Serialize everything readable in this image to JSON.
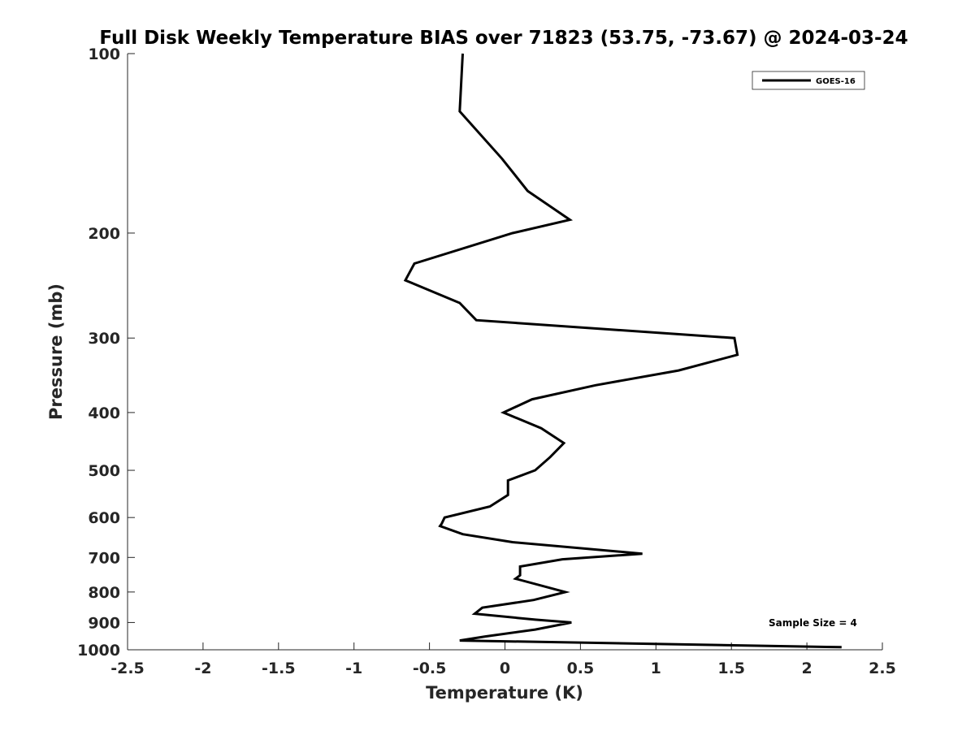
{
  "chart_data": {
    "type": "line",
    "title": "Full Disk Weekly Temperature BIAS over 71823 (53.75, -73.67) @ 2024-03-24",
    "xlabel": "Temperature (K)",
    "ylabel": "Pressure (mb)",
    "xlim": [
      -2.5,
      2.5
    ],
    "ylim": [
      1000,
      100
    ],
    "yscale": "log",
    "grid": false,
    "legend_position": "top-right",
    "x_ticks": [
      "-2.5",
      "-2",
      "-1.5",
      "-1",
      "-0.5",
      "0",
      "0.5",
      "1",
      "1.5",
      "2",
      "2.5"
    ],
    "y_ticks": [
      "100",
      "200",
      "300",
      "400",
      "500",
      "600",
      "700",
      "800",
      "900",
      "1000"
    ],
    "series": [
      {
        "name": "GOES-16",
        "color": "#000000",
        "points": [
          {
            "x": -0.28,
            "y": 100
          },
          {
            "x": -0.3,
            "y": 125
          },
          {
            "x": -0.02,
            "y": 150
          },
          {
            "x": 0.15,
            "y": 170
          },
          {
            "x": 0.43,
            "y": 190
          },
          {
            "x": 0.05,
            "y": 200
          },
          {
            "x": -0.6,
            "y": 225
          },
          {
            "x": -0.66,
            "y": 240
          },
          {
            "x": -0.3,
            "y": 262
          },
          {
            "x": -0.19,
            "y": 280
          },
          {
            "x": 1.52,
            "y": 300
          },
          {
            "x": 1.54,
            "y": 320
          },
          {
            "x": 1.15,
            "y": 340
          },
          {
            "x": 0.6,
            "y": 360
          },
          {
            "x": 0.18,
            "y": 380
          },
          {
            "x": -0.01,
            "y": 400
          },
          {
            "x": 0.24,
            "y": 425
          },
          {
            "x": 0.39,
            "y": 450
          },
          {
            "x": 0.3,
            "y": 475
          },
          {
            "x": 0.2,
            "y": 500
          },
          {
            "x": 0.02,
            "y": 520
          },
          {
            "x": 0.02,
            "y": 550
          },
          {
            "x": -0.1,
            "y": 575
          },
          {
            "x": -0.4,
            "y": 600
          },
          {
            "x": -0.42,
            "y": 615
          },
          {
            "x": -0.43,
            "y": 620
          },
          {
            "x": -0.28,
            "y": 640
          },
          {
            "x": 0.05,
            "y": 660
          },
          {
            "x": 0.91,
            "y": 690
          },
          {
            "x": 0.38,
            "y": 705
          },
          {
            "x": 0.1,
            "y": 725
          },
          {
            "x": 0.1,
            "y": 750
          },
          {
            "x": 0.07,
            "y": 760
          },
          {
            "x": 0.4,
            "y": 800
          },
          {
            "x": 0.19,
            "y": 825
          },
          {
            "x": -0.15,
            "y": 850
          },
          {
            "x": -0.2,
            "y": 870
          },
          {
            "x": 0.2,
            "y": 890
          },
          {
            "x": 0.44,
            "y": 900
          },
          {
            "x": 0.2,
            "y": 925
          },
          {
            "x": -0.13,
            "y": 950
          },
          {
            "x": -0.3,
            "y": 965
          },
          {
            "x": 2.23,
            "y": 990
          }
        ]
      }
    ],
    "annotations": [
      "Sample Size = 4"
    ]
  }
}
